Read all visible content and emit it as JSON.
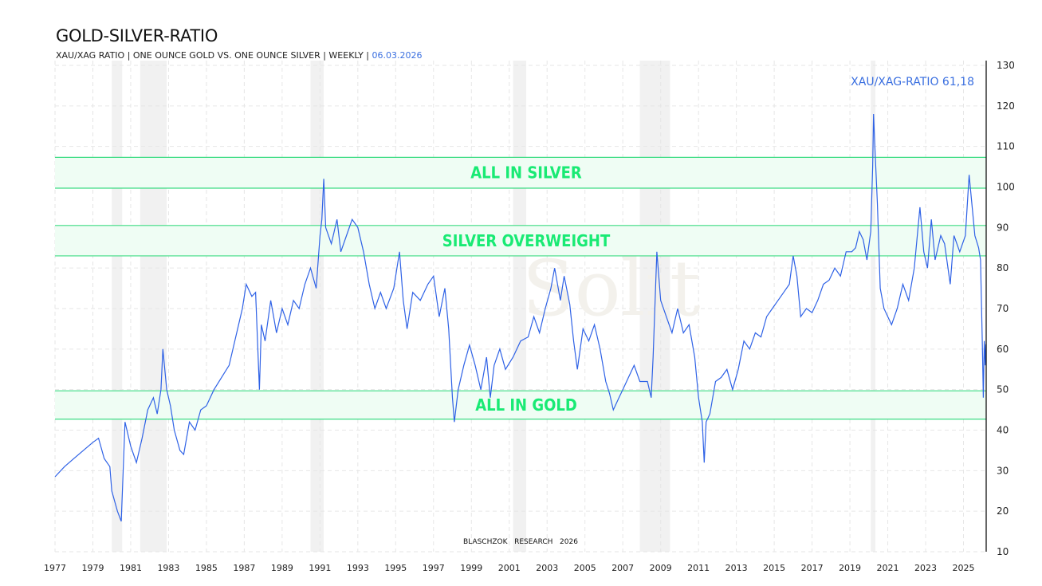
{
  "header": {
    "title": "GOLD-SILVER-RATIO",
    "subtitle": "XAU/XAG RATIO | ONE OUNCE GOLD VS. ONE OUNCE SILVER | WEEKLY |",
    "date": "06.03.2026"
  },
  "chart_data": {
    "type": "line",
    "title": "GOLD-SILVER-RATIO",
    "xlabel": "",
    "ylabel": "",
    "xlim": [
      1977,
      2026.2
    ],
    "ylim": [
      10,
      130
    ],
    "y_axis_position": "right",
    "grid": true,
    "x_ticks": [
      "1977",
      "1979",
      "1981",
      "1983",
      "1985",
      "1987",
      "1989",
      "1991",
      "1993",
      "1995",
      "1997",
      "1999",
      "2001",
      "2003",
      "2005",
      "2007",
      "2009",
      "2011",
      "2013",
      "2015",
      "2017",
      "2019",
      "2021",
      "2023",
      "2025"
    ],
    "y_ticks": [
      10,
      20,
      30,
      40,
      50,
      60,
      70,
      80,
      90,
      100,
      110,
      120,
      130
    ],
    "last_value_label": "XAU/XAG-RATIO 61,18",
    "footer": "BLASCHZOK   RESEARCH   2026",
    "colors": {
      "line": "#2f62e6",
      "band_line": "#3ddc84",
      "band_fill": "#effdf4",
      "band_label": "#19ea74",
      "shade": "#f1f1f1",
      "last_value": "#3a6fe0"
    },
    "zones": [
      {
        "label": "ALL IN SILVER",
        "from": 99.7,
        "to": 107.3
      },
      {
        "label": "SILVER OVERWEIGHT",
        "from": 83.0,
        "to": 90.5
      },
      {
        "label": "ALL IN GOLD",
        "from": 42.7,
        "to": 49.7
      }
    ],
    "shaded_periods": [
      [
        1980.0,
        1980.55
      ],
      [
        1981.5,
        1982.9
      ],
      [
        1990.5,
        1991.2
      ],
      [
        2001.2,
        2001.9
      ],
      [
        2007.9,
        2009.5
      ],
      [
        2020.1,
        2020.35
      ]
    ],
    "series": [
      {
        "x": [
          1977.0,
          1977.5,
          1978.0,
          1978.5,
          1979.0,
          1979.3,
          1979.6,
          1979.9,
          1980.0,
          1980.3,
          1980.5,
          1980.6,
          1980.7,
          1980.9,
          1981.0,
          1981.3,
          1981.6,
          1981.9,
          1982.2,
          1982.4,
          1982.6,
          1982.7,
          1982.9,
          1983.1,
          1983.3,
          1983.6,
          1983.8,
          1984.1,
          1984.4,
          1984.7,
          1985.0,
          1985.4,
          1985.8,
          1986.2,
          1986.5,
          1986.9,
          1987.1,
          1987.4,
          1987.6,
          1987.8,
          1987.9,
          1988.1,
          1988.4,
          1988.7,
          1989.0,
          1989.3,
          1989.6,
          1989.9,
          1990.2,
          1990.5,
          1990.8,
          1991.0,
          1991.1,
          1991.2,
          1991.3,
          1991.6,
          1991.9,
          1992.1,
          1992.4,
          1992.7,
          1993.0,
          1993.3,
          1993.6,
          1993.9,
          1994.2,
          1994.5,
          1994.9,
          1995.2,
          1995.4,
          1995.6,
          1995.9,
          1996.3,
          1996.7,
          1997.0,
          1997.3,
          1997.6,
          1997.8,
          1998.0,
          1998.1,
          1998.3,
          1998.6,
          1998.9,
          1999.2,
          1999.5,
          1999.8,
          2000.0,
          2000.2,
          2000.5,
          2000.8,
          2001.2,
          2001.6,
          2002.0,
          2002.3,
          2002.6,
          2002.9,
          2003.2,
          2003.4,
          2003.7,
          2003.9,
          2004.2,
          2004.4,
          2004.6,
          2004.9,
          2005.2,
          2005.5,
          2005.8,
          2006.1,
          2006.3,
          2006.5,
          2006.8,
          2007.0,
          2007.3,
          2007.6,
          2007.9,
          2008.3,
          2008.5,
          2008.6,
          2008.8,
          2009.0,
          2009.3,
          2009.6,
          2009.9,
          2010.2,
          2010.5,
          2010.8,
          2011.0,
          2011.2,
          2011.3,
          2011.4,
          2011.6,
          2011.9,
          2012.2,
          2012.5,
          2012.8,
          2013.1,
          2013.4,
          2013.7,
          2014.0,
          2014.3,
          2014.6,
          2014.9,
          2015.2,
          2015.5,
          2015.8,
          2016.0,
          2016.2,
          2016.4,
          2016.7,
          2017.0,
          2017.3,
          2017.6,
          2017.9,
          2018.2,
          2018.5,
          2018.8,
          2019.1,
          2019.3,
          2019.5,
          2019.7,
          2019.9,
          2020.1,
          2020.2,
          2020.25,
          2020.3,
          2020.45,
          2020.6,
          2020.8,
          2021.0,
          2021.2,
          2021.5,
          2021.8,
          2022.1,
          2022.4,
          2022.7,
          2022.9,
          2023.1,
          2023.3,
          2023.5,
          2023.8,
          2024.0,
          2024.3,
          2024.5,
          2024.8,
          2025.1,
          2025.3,
          2025.4,
          2025.6,
          2025.8,
          2025.9,
          2026.0,
          2026.05,
          2026.1,
          2026.15,
          2026.18
        ],
        "y": [
          28.5,
          31,
          33,
          35,
          37,
          38,
          33,
          31,
          25,
          20,
          17.5,
          30,
          42,
          38,
          36,
          32,
          38,
          45,
          48,
          44,
          50,
          60,
          50,
          46,
          40,
          35,
          34,
          42,
          40,
          45,
          46,
          50,
          53,
          56,
          62,
          70,
          76,
          73,
          74,
          50,
          66,
          62,
          72,
          64,
          70,
          66,
          72,
          70,
          76,
          80,
          75,
          88,
          92,
          102,
          90,
          86,
          92,
          84,
          88,
          92,
          90,
          84,
          76,
          70,
          74,
          70,
          75,
          84,
          72,
          65,
          74,
          72,
          76,
          78,
          68,
          75,
          65,
          48,
          42,
          50,
          56,
          61,
          56,
          50,
          58,
          48,
          56,
          60,
          55,
          58,
          62,
          63,
          68,
          64,
          70,
          75,
          80,
          72,
          78,
          71,
          62,
          55,
          65,
          62,
          66,
          60,
          52,
          49,
          45,
          48,
          50,
          53,
          56,
          52,
          52,
          48,
          58,
          84,
          72,
          68,
          64,
          70,
          64,
          66,
          58,
          48,
          42,
          32,
          42,
          44,
          52,
          53,
          55,
          50,
          55,
          62,
          60,
          64,
          63,
          68,
          70,
          72,
          74,
          76,
          83,
          78,
          68,
          70,
          69,
          72,
          76,
          77,
          80,
          78,
          84,
          84,
          85,
          89,
          87,
          82,
          89,
          105,
          118,
          112,
          96,
          75,
          70,
          68,
          66,
          70,
          76,
          72,
          80,
          95,
          84,
          80,
          92,
          82,
          88,
          86,
          76,
          88,
          84,
          88,
          103,
          98,
          88,
          85,
          82,
          60,
          48,
          62,
          56,
          61.18
        ]
      }
    ]
  }
}
